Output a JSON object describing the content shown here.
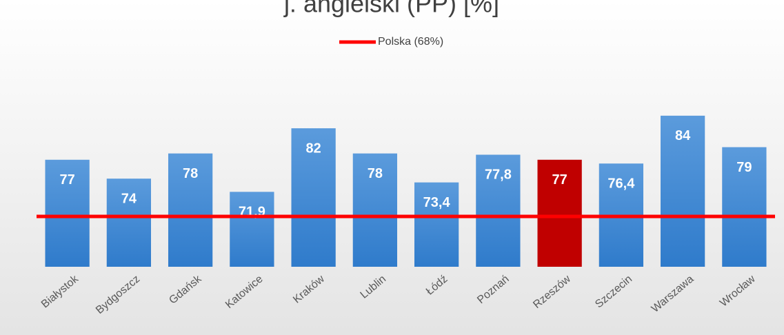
{
  "chart_data": {
    "type": "bar",
    "title": "j. angielski (PP) [%]",
    "categories": [
      "Białystok",
      "Bydgoszcz",
      "Gdańsk",
      "Katowice",
      "Kraków",
      "Lublin",
      "Łódź",
      "Poznań",
      "Rzeszów",
      "Szczecin",
      "Warszawa",
      "Wrocław"
    ],
    "values": [
      77,
      74,
      78,
      71.9,
      82,
      78,
      73.4,
      77.8,
      77,
      76.4,
      84,
      79
    ],
    "value_labels": [
      "77",
      "74",
      "78",
      "71,9",
      "82",
      "78",
      "73,4",
      "77,8",
      "77",
      "76,4",
      "84",
      "79"
    ],
    "colors": [
      "#3f8ad6",
      "#3f8ad6",
      "#3f8ad6",
      "#3f8ad6",
      "#3f8ad6",
      "#3f8ad6",
      "#3f8ad6",
      "#3f8ad6",
      "#c00000",
      "#3f8ad6",
      "#3f8ad6",
      "#3f8ad6"
    ],
    "ylim": [
      60,
      98
    ],
    "reference": {
      "name": "Polska (68%)",
      "value": 68,
      "color": "#ff0000"
    },
    "legend": "top"
  }
}
